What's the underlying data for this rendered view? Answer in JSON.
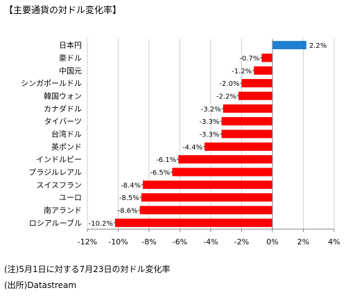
{
  "title": "【主要通貨の対ドル変化率】",
  "note": "(注)5月1日に対する7月23日の対ドル変化率",
  "source": "(出所)Datastream",
  "colors": {
    "negative": "#ff0000",
    "positive": "#1f7fd0",
    "grid": "#cfcfcf",
    "axis": "#808080"
  },
  "chart_data": {
    "type": "bar",
    "orientation": "horizontal",
    "categories": [
      "日本円",
      "豪ドル",
      "中国元",
      "シンガポールドル",
      "韓国ウォン",
      "カナダドル",
      "タイバーツ",
      "台湾ドル",
      "英ポンド",
      "インドルピー",
      "ブラジルレアル",
      "スイスフラン",
      "ユーロ",
      "南アランド",
      "ロシアルーブル"
    ],
    "values": [
      2.2,
      -0.7,
      -1.2,
      -2.0,
      -2.2,
      -3.2,
      -3.3,
      -3.3,
      -4.4,
      -6.1,
      -6.5,
      -8.4,
      -8.5,
      -8.6,
      -10.2
    ],
    "data_labels": [
      "2.2%",
      "-0.7%",
      "-1.2%",
      "-2.0%",
      "-2.2%",
      "-3.2%",
      "-3.3%",
      "-3.3%",
      "-4.4%",
      "-6.1%",
      "-6.5%",
      "-8.4%",
      "-8.5%",
      "-8.6%",
      "-10.2%"
    ],
    "xlim": [
      -12,
      4
    ],
    "xticks": [
      -12,
      -10,
      -8,
      -6,
      -4,
      -2,
      0,
      2,
      4
    ],
    "xtick_labels": [
      "-12%",
      "-10%",
      "-8%",
      "-6%",
      "-4%",
      "-2%",
      "0%",
      "2%",
      "4%"
    ],
    "grid": true,
    "legend": "none"
  }
}
